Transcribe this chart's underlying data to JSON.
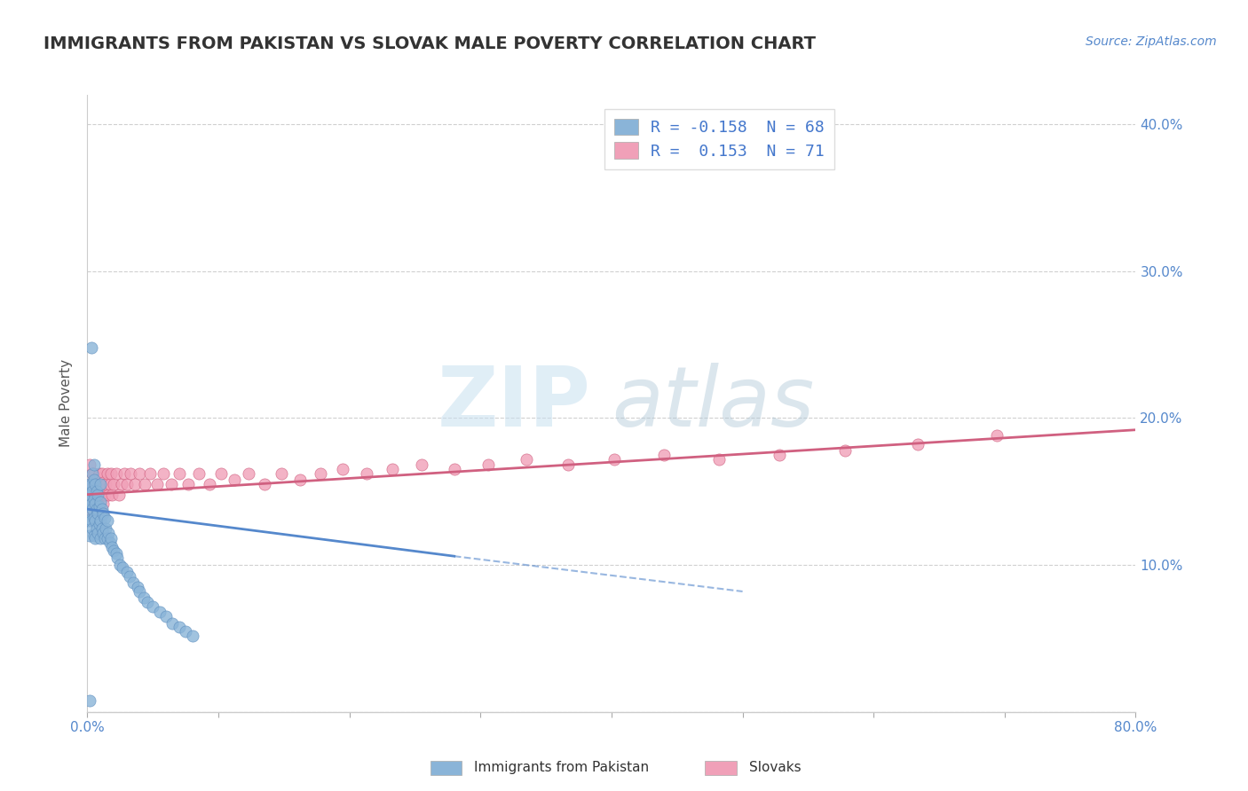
{
  "title": "IMMIGRANTS FROM PAKISTAN VS SLOVAK MALE POVERTY CORRELATION CHART",
  "source_text": "Source: ZipAtlas.com",
  "ylabel": "Male Poverty",
  "xlim": [
    0.0,
    0.8
  ],
  "ylim": [
    0.0,
    0.42
  ],
  "xticks": [
    0.0,
    0.1,
    0.2,
    0.3,
    0.4,
    0.5,
    0.6,
    0.7,
    0.8
  ],
  "xticklabels": [
    "0.0%",
    "",
    "",
    "",
    "",
    "",
    "",
    "",
    "80.0%"
  ],
  "yticks": [
    0.0,
    0.1,
    0.2,
    0.3,
    0.4
  ],
  "right_yticks": [
    0.1,
    0.2,
    0.3,
    0.4
  ],
  "right_yticklabels": [
    "10.0%",
    "20.0%",
    "30.0%",
    "40.0%"
  ],
  "grid_color": "#d0d0d0",
  "background_color": "#ffffff",
  "series1_color": "#8ab4d8",
  "series1_edge_color": "#6090c0",
  "series2_color": "#f0a0b8",
  "series2_edge_color": "#d06080",
  "series1_label": "Immigrants from Pakistan",
  "series2_label": "Slovaks",
  "legend_text1": "R = -0.158  N = 68",
  "legend_text2": "R =  0.153  N = 71",
  "legend_color": "#4477cc",
  "trend1_color": "#5588cc",
  "trend2_color": "#d06080",
  "watermark_zip": "ZIP",
  "watermark_atlas": "atlas",
  "title_color": "#333333",
  "axis_tick_color": "#5588cc",
  "title_fontsize": 14,
  "pakistan_x": [
    0.001,
    0.001,
    0.001,
    0.002,
    0.002,
    0.002,
    0.003,
    0.003,
    0.003,
    0.004,
    0.004,
    0.004,
    0.004,
    0.005,
    0.005,
    0.005,
    0.005,
    0.005,
    0.006,
    0.006,
    0.006,
    0.006,
    0.007,
    0.007,
    0.007,
    0.008,
    0.008,
    0.008,
    0.009,
    0.009,
    0.01,
    0.01,
    0.01,
    0.01,
    0.011,
    0.011,
    0.012,
    0.012,
    0.013,
    0.013,
    0.014,
    0.015,
    0.015,
    0.016,
    0.017,
    0.018,
    0.019,
    0.02,
    0.022,
    0.023,
    0.025,
    0.027,
    0.03,
    0.032,
    0.035,
    0.038,
    0.04,
    0.043,
    0.046,
    0.05,
    0.055,
    0.06,
    0.065,
    0.07,
    0.075,
    0.08,
    0.003,
    0.002
  ],
  "pakistan_y": [
    0.13,
    0.145,
    0.155,
    0.12,
    0.138,
    0.148,
    0.13,
    0.142,
    0.155,
    0.125,
    0.138,
    0.15,
    0.162,
    0.12,
    0.132,
    0.145,
    0.158,
    0.168,
    0.118,
    0.13,
    0.142,
    0.155,
    0.125,
    0.138,
    0.15,
    0.122,
    0.135,
    0.148,
    0.128,
    0.14,
    0.118,
    0.13,
    0.143,
    0.155,
    0.125,
    0.138,
    0.122,
    0.135,
    0.118,
    0.132,
    0.125,
    0.118,
    0.13,
    0.122,
    0.115,
    0.118,
    0.112,
    0.11,
    0.108,
    0.105,
    0.1,
    0.098,
    0.095,
    0.092,
    0.088,
    0.085,
    0.082,
    0.078,
    0.075,
    0.072,
    0.068,
    0.065,
    0.06,
    0.058,
    0.055,
    0.052,
    0.248,
    0.008
  ],
  "slovak_x": [
    0.001,
    0.002,
    0.002,
    0.003,
    0.003,
    0.004,
    0.004,
    0.005,
    0.005,
    0.005,
    0.006,
    0.006,
    0.007,
    0.007,
    0.008,
    0.008,
    0.009,
    0.009,
    0.01,
    0.01,
    0.011,
    0.011,
    0.012,
    0.012,
    0.013,
    0.014,
    0.015,
    0.016,
    0.017,
    0.018,
    0.019,
    0.02,
    0.022,
    0.024,
    0.026,
    0.028,
    0.03,
    0.033,
    0.036,
    0.04,
    0.044,
    0.048,
    0.053,
    0.058,
    0.064,
    0.07,
    0.077,
    0.085,
    0.093,
    0.102,
    0.112,
    0.123,
    0.135,
    0.148,
    0.162,
    0.178,
    0.195,
    0.213,
    0.233,
    0.255,
    0.28,
    0.306,
    0.335,
    0.367,
    0.402,
    0.44,
    0.482,
    0.528,
    0.578,
    0.634,
    0.694
  ],
  "slovak_y": [
    0.145,
    0.155,
    0.168,
    0.138,
    0.152,
    0.148,
    0.162,
    0.135,
    0.148,
    0.162,
    0.142,
    0.158,
    0.138,
    0.152,
    0.145,
    0.16,
    0.148,
    0.162,
    0.138,
    0.152,
    0.148,
    0.162,
    0.142,
    0.156,
    0.148,
    0.155,
    0.162,
    0.148,
    0.155,
    0.162,
    0.148,
    0.155,
    0.162,
    0.148,
    0.155,
    0.162,
    0.155,
    0.162,
    0.155,
    0.162,
    0.155,
    0.162,
    0.155,
    0.162,
    0.155,
    0.162,
    0.155,
    0.162,
    0.155,
    0.162,
    0.158,
    0.162,
    0.155,
    0.162,
    0.158,
    0.162,
    0.165,
    0.162,
    0.165,
    0.168,
    0.165,
    0.168,
    0.172,
    0.168,
    0.172,
    0.175,
    0.172,
    0.175,
    0.178,
    0.182,
    0.188
  ]
}
